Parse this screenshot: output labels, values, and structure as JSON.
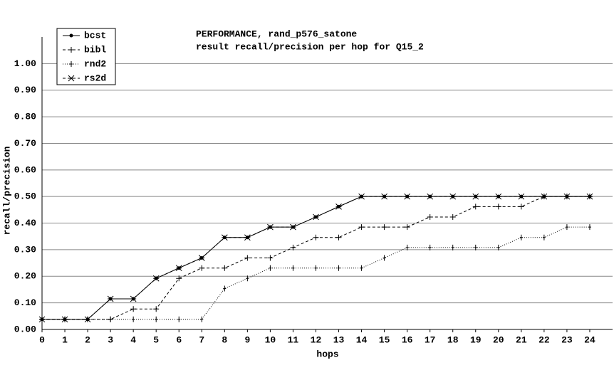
{
  "chart_data": {
    "type": "line",
    "title": "PERFORMANCE, rand_p576_satone",
    "subtitle": "result recall/precision per hop for Q15_2",
    "x_label": "hops",
    "y_label": "recall/precision",
    "x": [
      0,
      1,
      2,
      3,
      4,
      5,
      6,
      7,
      8,
      9,
      10,
      11,
      12,
      13,
      14,
      15,
      16,
      17,
      18,
      19,
      20,
      21,
      22,
      23,
      24
    ],
    "xlim": [
      0,
      25
    ],
    "xticks": [
      0,
      1,
      2,
      3,
      4,
      5,
      6,
      7,
      8,
      9,
      10,
      11,
      12,
      13,
      14,
      15,
      16,
      17,
      18,
      19,
      20,
      21,
      22,
      23,
      24
    ],
    "ylim": [
      0,
      1.1
    ],
    "yticks": [
      {
        "value": 0,
        "label": "0.00"
      },
      {
        "value": 0.1,
        "label": "0.10"
      },
      {
        "value": 0.2,
        "label": "0.20"
      },
      {
        "value": 0.3,
        "label": "0.30"
      },
      {
        "value": 0.4,
        "label": "0.40"
      },
      {
        "value": 0.5,
        "label": "0.50"
      },
      {
        "value": 0.6,
        "label": "0.60"
      },
      {
        "value": 0.7,
        "label": "0.70"
      },
      {
        "value": 0.8,
        "label": "0.80"
      },
      {
        "value": 0.9,
        "label": "0.90"
      },
      {
        "value": 1,
        "label": "1.00"
      }
    ],
    "grid": true,
    "legend": "upper left",
    "series": [
      {
        "name": "bcst",
        "color": "#000000",
        "marker": "dot",
        "dash": "solid",
        "values": [
          0.038,
          0.038,
          0.038,
          0.115,
          0.115,
          0.192,
          0.231,
          0.269,
          0.346,
          0.346,
          0.385,
          0.385,
          0.423,
          0.462,
          0.5,
          0.5,
          0.5,
          0.5,
          0.5,
          0.5,
          0.5,
          0.5,
          0.5,
          0.5,
          0.5
        ]
      },
      {
        "name": "bibl",
        "color": "#000000",
        "marker": "plus",
        "dash": "dashed",
        "values": [
          0.038,
          0.038,
          0.038,
          0.038,
          0.077,
          0.077,
          0.192,
          0.231,
          0.231,
          0.269,
          0.269,
          0.308,
          0.346,
          0.346,
          0.385,
          0.385,
          0.385,
          0.423,
          0.423,
          0.462,
          0.462,
          0.462,
          0.5,
          0.5,
          0.5
        ]
      },
      {
        "name": "rnd2",
        "color": "#000000",
        "marker": "tick",
        "dash": "dotted",
        "values": [
          0.038,
          0.038,
          0.038,
          0.038,
          0.038,
          0.038,
          0.038,
          0.038,
          0.154,
          0.192,
          0.231,
          0.231,
          0.231,
          0.231,
          0.231,
          0.269,
          0.308,
          0.308,
          0.308,
          0.308,
          0.308,
          0.346,
          0.346,
          0.385,
          0.385
        ]
      },
      {
        "name": "rs2d",
        "color": "#000000",
        "marker": "star",
        "dash": "dashed",
        "values": [
          0.038,
          0.038,
          0.038,
          0.115,
          0.115,
          0.192,
          0.231,
          0.269,
          0.346,
          0.346,
          0.385,
          0.385,
          0.423,
          0.462,
          0.5,
          0.5,
          0.5,
          0.5,
          0.5,
          0.5,
          0.5,
          0.5,
          0.5,
          0.5,
          0.5
        ]
      }
    ]
  }
}
